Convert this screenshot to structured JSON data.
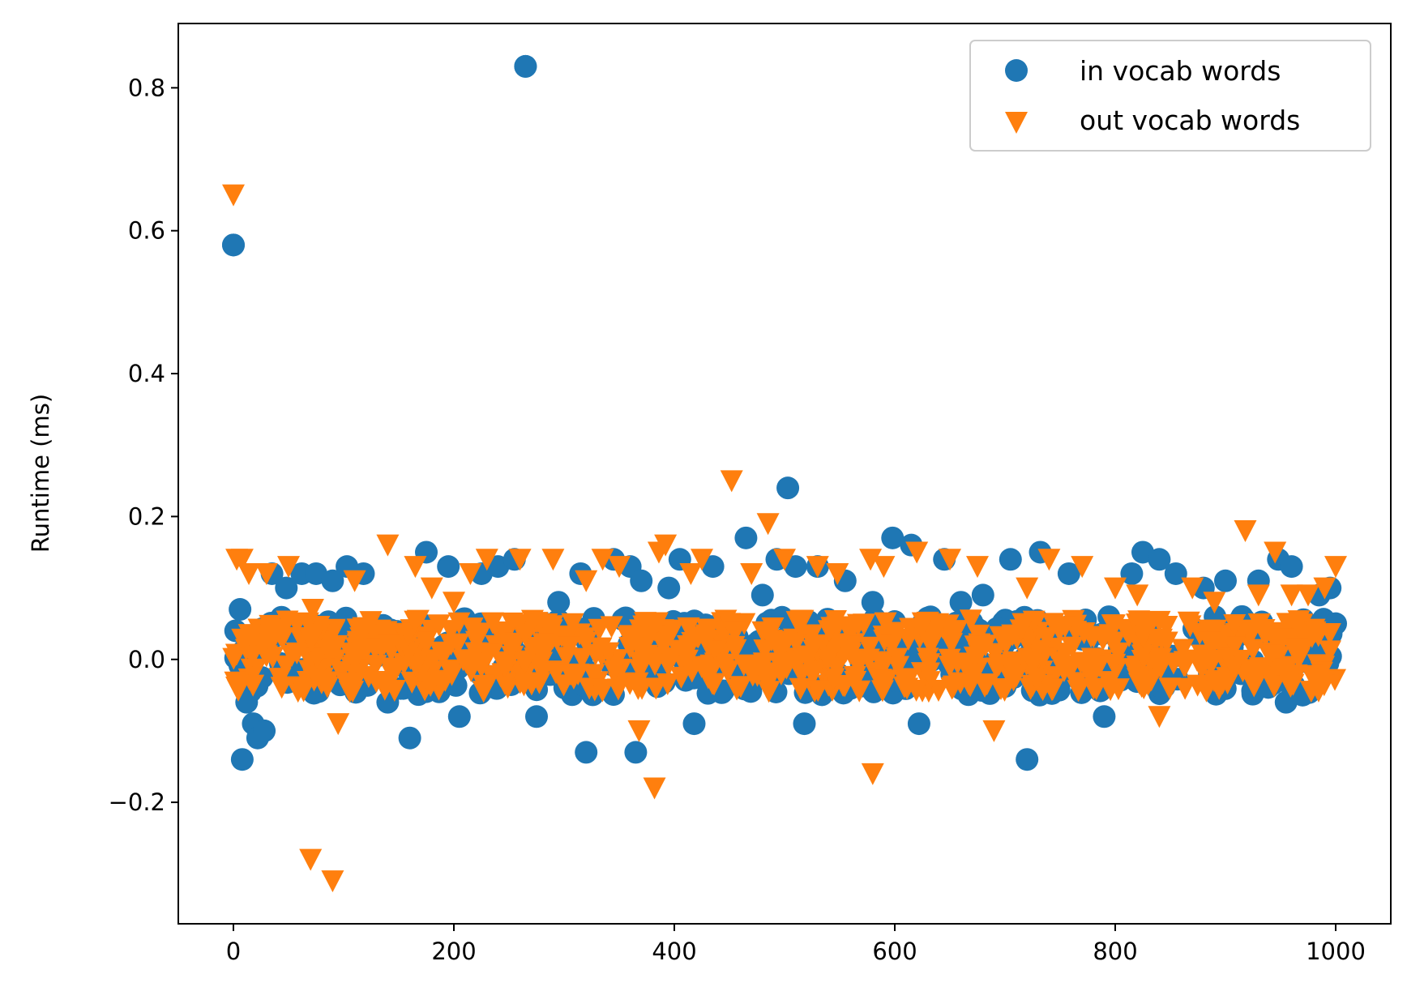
{
  "colors": {
    "in_vocab": "#1f77b4",
    "out_vocab": "#ff7f0e",
    "axes": "#000000",
    "legend_border": "#cccccc"
  },
  "chart_data": {
    "type": "scatter",
    "title": "",
    "xlabel": "",
    "ylabel": "Runtime (ms)",
    "xlim": [
      -50,
      1050
    ],
    "ylim": [
      -0.37,
      0.89
    ],
    "xticks": [
      0,
      200,
      400,
      600,
      800,
      1000
    ],
    "xtick_labels": [
      "0",
      "200",
      "400",
      "600",
      "800",
      "1000"
    ],
    "yticks": [
      -0.2,
      0.0,
      0.2,
      0.4,
      0.6,
      0.8
    ],
    "ytick_labels": [
      "−0.2",
      "0.0",
      "0.2",
      "0.4",
      "0.6",
      "0.8"
    ],
    "grid": false,
    "legend_position": "top-right",
    "series": [
      {
        "name": "in vocab words",
        "marker": "circle",
        "x": [
          0,
          2,
          6,
          8,
          12,
          18,
          22,
          28,
          35,
          48,
          62,
          75,
          90,
          103,
          118,
          140,
          160,
          175,
          195,
          205,
          225,
          240,
          255,
          265,
          275,
          295,
          315,
          320,
          345,
          360,
          365,
          370,
          395,
          405,
          418,
          435,
          465,
          480,
          493,
          503,
          510,
          518,
          530,
          555,
          580,
          598,
          615,
          622,
          645,
          660,
          680,
          705,
          720,
          732,
          758,
          790,
          815,
          825,
          840,
          855,
          880,
          900,
          915,
          930,
          948,
          955,
          960,
          970,
          985,
          995,
          1000
        ],
        "y": [
          0.58,
          0.04,
          0.07,
          -0.14,
          -0.06,
          -0.09,
          -0.11,
          -0.1,
          0.12,
          0.1,
          0.12,
          0.12,
          0.11,
          0.13,
          0.12,
          -0.06,
          -0.11,
          0.15,
          0.13,
          -0.08,
          0.12,
          0.13,
          0.14,
          0.83,
          -0.08,
          0.08,
          0.12,
          -0.13,
          0.14,
          0.13,
          -0.13,
          0.11,
          0.1,
          0.14,
          -0.09,
          0.13,
          0.17,
          0.09,
          0.14,
          0.24,
          0.13,
          -0.09,
          0.13,
          0.11,
          0.08,
          0.17,
          0.16,
          -0.09,
          0.14,
          0.08,
          0.09,
          0.14,
          -0.14,
          0.15,
          0.12,
          -0.08,
          0.12,
          0.15,
          0.14,
          0.12,
          0.1,
          0.11,
          0.06,
          0.11,
          0.14,
          -0.06,
          0.13,
          -0.05,
          0.09,
          0.1,
          0.05
        ]
      },
      {
        "name": "out vocab words",
        "marker": "triangle-down",
        "x": [
          0,
          3,
          8,
          14,
          30,
          50,
          70,
          72,
          90,
          95,
          110,
          140,
          165,
          180,
          200,
          215,
          230,
          260,
          290,
          320,
          335,
          350,
          368,
          382,
          386,
          392,
          415,
          425,
          452,
          470,
          485,
          500,
          530,
          548,
          578,
          580,
          590,
          620,
          650,
          675,
          690,
          720,
          740,
          770,
          800,
          820,
          840,
          870,
          890,
          918,
          930,
          945,
          960,
          975,
          990,
          1000
        ],
        "y": [
          0.65,
          0.14,
          0.14,
          0.12,
          0.12,
          0.13,
          -0.28,
          0.07,
          -0.31,
          -0.09,
          0.11,
          0.16,
          0.13,
          0.1,
          0.08,
          0.12,
          0.14,
          0.14,
          0.14,
          0.11,
          0.14,
          0.13,
          -0.1,
          -0.18,
          0.15,
          0.16,
          0.12,
          0.14,
          0.25,
          0.12,
          0.19,
          0.14,
          0.13,
          0.12,
          0.14,
          -0.16,
          0.13,
          0.15,
          0.14,
          0.13,
          -0.1,
          0.1,
          0.14,
          0.13,
          0.1,
          0.09,
          -0.08,
          0.1,
          0.08,
          0.18,
          0.09,
          0.15,
          0.09,
          0.09,
          0.1,
          0.13
        ]
      }
    ],
    "noise_band": {
      "x_range": [
        0,
        1000
      ],
      "y_range": [
        -0.05,
        0.06
      ]
    }
  }
}
